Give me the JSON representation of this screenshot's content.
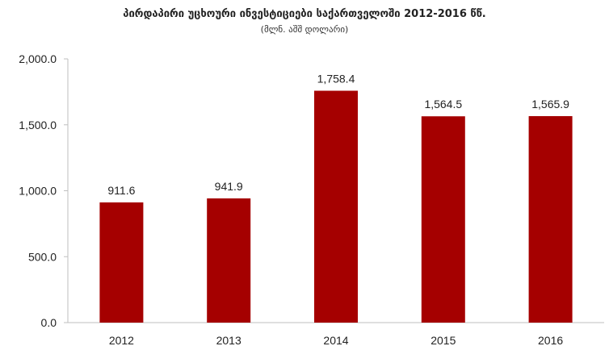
{
  "colors": {
    "bar": "#a50000",
    "axis": "#bfbfbf",
    "text": "#222222"
  },
  "chart_data": {
    "type": "bar",
    "title": "პირდაპირი უცხოური ინვესტიციები საქართველოში  2012-2016 წწ.",
    "subtitle": "(მლნ. აშშ დოლარი)",
    "categories": [
      "2012",
      "2013",
      "2014",
      "2015",
      "2016"
    ],
    "values": [
      911.6,
      941.9,
      1758.4,
      1564.5,
      1565.9
    ],
    "value_labels": [
      "911.6",
      "941.9",
      "1,758.4",
      "1,564.5",
      "1,565.9"
    ],
    "ylim": [
      0,
      2000
    ],
    "yticks": [
      0,
      500,
      1000,
      1500,
      2000
    ],
    "ytick_labels": [
      "0.0",
      "500.0",
      "1,000.0",
      "1,500.0",
      "2,000.0"
    ],
    "grid": false,
    "xlabel": "",
    "ylabel": ""
  }
}
